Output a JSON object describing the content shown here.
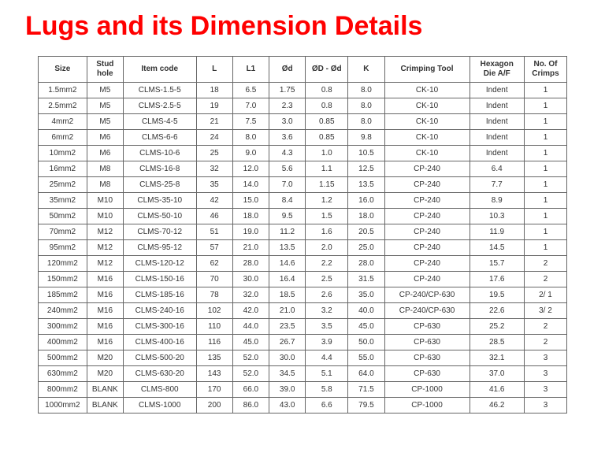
{
  "title": "Lugs and its Dimension Details",
  "title_color": "#ff0000",
  "title_fontsize": 34,
  "background_color": "#ffffff",
  "border_color": "#666666",
  "text_color": "#333333",
  "table": {
    "columns": [
      "Size",
      "Stud hole",
      "Item code",
      "L",
      "L1",
      "Ød",
      "ØD - Ød",
      "K",
      "Crimping Tool",
      "Hexagon Die A/F",
      "No. Of Crimps"
    ],
    "rows": [
      [
        "1.5mm2",
        "M5",
        "CLMS-1.5-5",
        "18",
        "6.5",
        "1.75",
        "0.8",
        "8.0",
        "CK-10",
        "Indent",
        "1"
      ],
      [
        "2.5mm2",
        "M5",
        "CLMS-2.5-5",
        "19",
        "7.0",
        "2.3",
        "0.8",
        "8.0",
        "CK-10",
        "Indent",
        "1"
      ],
      [
        "4mm2",
        "M5",
        "CLMS-4-5",
        "21",
        "7.5",
        "3.0",
        "0.85",
        "8.0",
        "CK-10",
        "Indent",
        "1"
      ],
      [
        "6mm2",
        "M6",
        "CLMS-6-6",
        "24",
        "8.0",
        "3.6",
        "0.85",
        "9.8",
        "CK-10",
        "Indent",
        "1"
      ],
      [
        "10mm2",
        "M6",
        "CLMS-10-6",
        "25",
        "9.0",
        "4.3",
        "1.0",
        "10.5",
        "CK-10",
        "Indent",
        "1"
      ],
      [
        "16mm2",
        "M8",
        "CLMS-16-8",
        "32",
        "12.0",
        "5.6",
        "1.1",
        "12.5",
        "CP-240",
        "6.4",
        "1"
      ],
      [
        "25mm2",
        "M8",
        "CLMS-25-8",
        "35",
        "14.0",
        "7.0",
        "1.15",
        "13.5",
        "CP-240",
        "7.7",
        "1"
      ],
      [
        "35mm2",
        "M10",
        "CLMS-35-10",
        "42",
        "15.0",
        "8.4",
        "1.2",
        "16.0",
        "CP-240",
        "8.9",
        "1"
      ],
      [
        "50mm2",
        "M10",
        "CLMS-50-10",
        "46",
        "18.0",
        "9.5",
        "1.5",
        "18.0",
        "CP-240",
        "10.3",
        "1"
      ],
      [
        "70mm2",
        "M12",
        "CLMS-70-12",
        "51",
        "19.0",
        "11.2",
        "1.6",
        "20.5",
        "CP-240",
        "11.9",
        "1"
      ],
      [
        "95mm2",
        "M12",
        "CLMS-95-12",
        "57",
        "21.0",
        "13.5",
        "2.0",
        "25.0",
        "CP-240",
        "14.5",
        "1"
      ],
      [
        "120mm2",
        "M12",
        "CLMS-120-12",
        "62",
        "28.0",
        "14.6",
        "2.2",
        "28.0",
        "CP-240",
        "15.7",
        "2"
      ],
      [
        "150mm2",
        "M16",
        "CLMS-150-16",
        "70",
        "30.0",
        "16.4",
        "2.5",
        "31.5",
        "CP-240",
        "17.6",
        "2"
      ],
      [
        "185mm2",
        "M16",
        "CLMS-185-16",
        "78",
        "32.0",
        "18.5",
        "2.6",
        "35.0",
        "CP-240/CP-630",
        "19.5",
        "2/ 1"
      ],
      [
        "240mm2",
        "M16",
        "CLMS-240-16",
        "102",
        "42.0",
        "21.0",
        "3.2",
        "40.0",
        "CP-240/CP-630",
        "22.6",
        "3/ 2"
      ],
      [
        "300mm2",
        "M16",
        "CLMS-300-16",
        "110",
        "44.0",
        "23.5",
        "3.5",
        "45.0",
        "CP-630",
        "25.2",
        "2"
      ],
      [
        "400mm2",
        "M16",
        "CLMS-400-16",
        "116",
        "45.0",
        "26.7",
        "3.9",
        "50.0",
        "CP-630",
        "28.5",
        "2"
      ],
      [
        "500mm2",
        "M20",
        "CLMS-500-20",
        "135",
        "52.0",
        "30.0",
        "4.4",
        "55.0",
        "CP-630",
        "32.1",
        "3"
      ],
      [
        "630mm2",
        "M20",
        "CLMS-630-20",
        "143",
        "52.0",
        "34.5",
        "5.1",
        "64.0",
        "CP-630",
        "37.0",
        "3"
      ],
      [
        "800mm2",
        "BLANK",
        "CLMS-800",
        "170",
        "66.0",
        "39.0",
        "5.8",
        "71.5",
        "CP-1000",
        "41.6",
        "3"
      ],
      [
        "1000mm2",
        "BLANK",
        "CLMS-1000",
        "200",
        "86.0",
        "43.0",
        "6.6",
        "79.5",
        "CP-1000",
        "46.2",
        "3"
      ]
    ]
  }
}
